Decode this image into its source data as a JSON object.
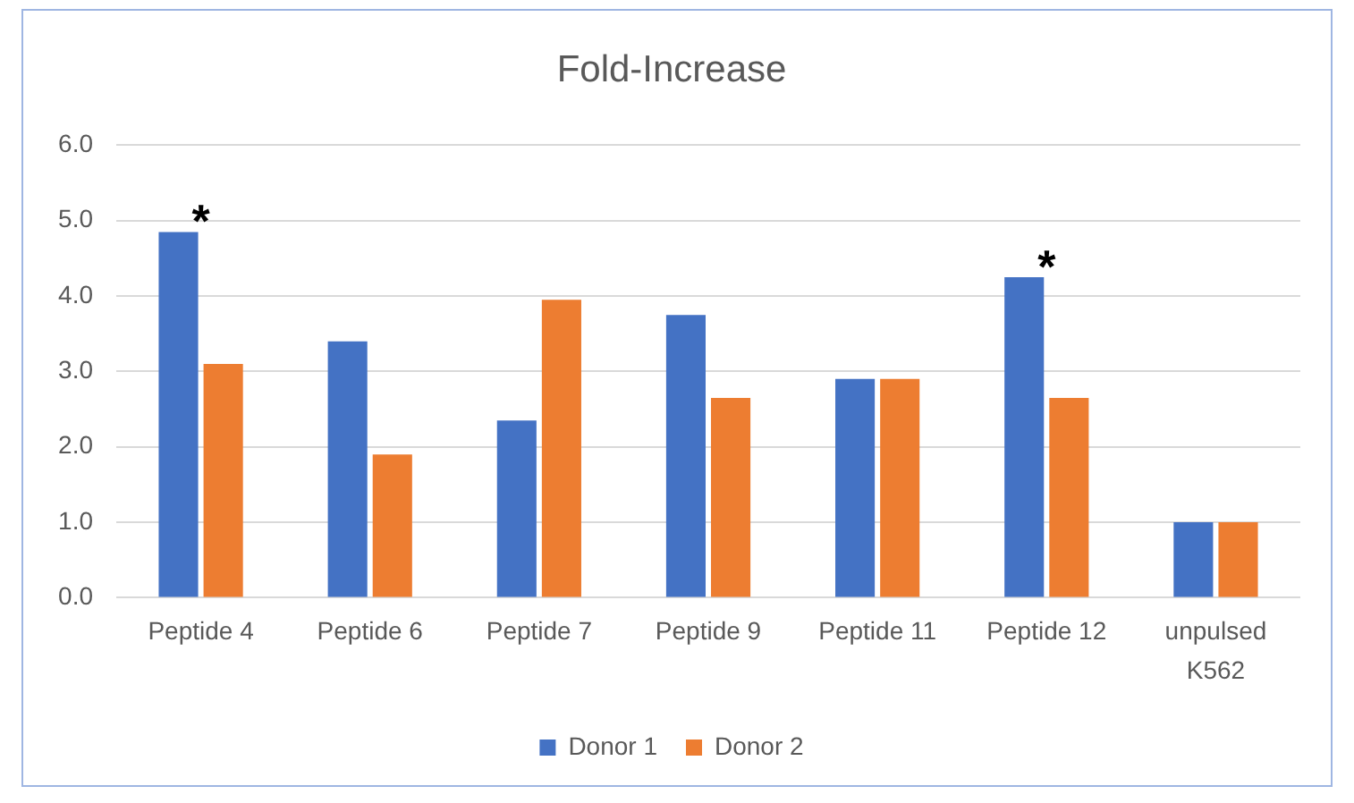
{
  "chart_data": {
    "type": "bar",
    "title": "Fold-Increase",
    "categories": [
      "Peptide 4",
      "Peptide 6",
      "Peptide 7",
      "Peptide 9",
      "Peptide 11",
      "Peptide 12",
      "unpulsed K562"
    ],
    "series": [
      {
        "name": "Donor 1",
        "color": "#4472c4",
        "values": [
          4.85,
          3.4,
          2.35,
          3.75,
          2.9,
          4.25,
          1.0
        ]
      },
      {
        "name": "Donor 2",
        "color": "#ed7d31",
        "values": [
          3.1,
          1.9,
          3.95,
          2.65,
          2.9,
          2.65,
          1.0
        ]
      }
    ],
    "ylim": [
      0,
      6
    ],
    "yticks": [
      {
        "value": 0,
        "label": "0.0"
      },
      {
        "value": 1,
        "label": "1.0"
      },
      {
        "value": 2,
        "label": "2.0"
      },
      {
        "value": 3,
        "label": "3.0"
      },
      {
        "value": 4,
        "label": "4.0"
      },
      {
        "value": 5,
        "label": "5.0"
      },
      {
        "value": 6,
        "label": "6.0"
      }
    ],
    "grid": "y",
    "legend": "bottom",
    "annotations": [
      {
        "text": "*",
        "x": "Peptide 4",
        "y": 4.85
      },
      {
        "text": "*",
        "x": "Peptide 12",
        "y": 4.25
      }
    ]
  }
}
